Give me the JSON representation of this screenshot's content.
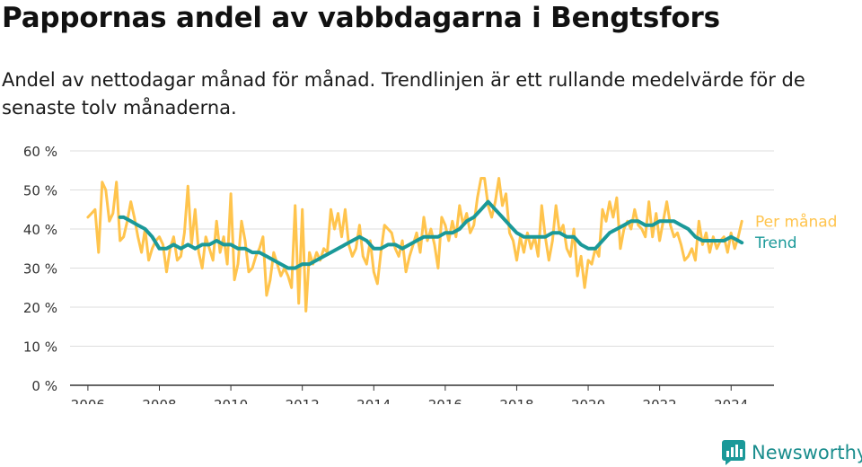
{
  "title": "Pappornas andel av vabbdagarna i Bengtsfors",
  "subtitle": "Andel av nettodagar månad för månad. Trendlinjen är ett rullande medelvärde för de senaste tolv månaderna.",
  "brand": {
    "name": "Newsworthy",
    "icon": "newsworthy-logo-icon",
    "color": "#1a9999"
  },
  "chart_data": {
    "type": "line",
    "title": "",
    "xlabel": "",
    "ylabel": "",
    "grid": true,
    "legend": "line-end labels",
    "xlim": [
      2005.5,
      2025.2
    ],
    "ylim": [
      0,
      60
    ],
    "x_ticks": [
      2006,
      2008,
      2010,
      2012,
      2014,
      2016,
      2018,
      2020,
      2022,
      2024
    ],
    "x_tick_labels": [
      "2006",
      "2008",
      "2010",
      "2012",
      "2014",
      "2016",
      "2018",
      "2020",
      "2022",
      "2024"
    ],
    "y_ticks": [
      0,
      10,
      20,
      30,
      40,
      50,
      60
    ],
    "y_tick_labels": [
      "0 %",
      "10 %",
      "20 %",
      "30 %",
      "40 %",
      "50 %",
      "60 %"
    ],
    "series": [
      {
        "name": "Per månad",
        "color": "#ffc44d",
        "points": [
          [
            2006.0,
            43
          ],
          [
            2006.1,
            44
          ],
          [
            2006.2,
            45
          ],
          [
            2006.3,
            34
          ],
          [
            2006.4,
            52
          ],
          [
            2006.5,
            50
          ],
          [
            2006.6,
            42
          ],
          [
            2006.7,
            44
          ],
          [
            2006.8,
            52
          ],
          [
            2006.9,
            37
          ],
          [
            2007.0,
            38
          ],
          [
            2007.1,
            42
          ],
          [
            2007.2,
            47
          ],
          [
            2007.3,
            43
          ],
          [
            2007.4,
            38
          ],
          [
            2007.5,
            34
          ],
          [
            2007.6,
            40
          ],
          [
            2007.7,
            32
          ],
          [
            2007.8,
            35
          ],
          [
            2007.9,
            37
          ],
          [
            2008.0,
            38
          ],
          [
            2008.1,
            36
          ],
          [
            2008.2,
            29
          ],
          [
            2008.3,
            35
          ],
          [
            2008.4,
            38
          ],
          [
            2008.5,
            32
          ],
          [
            2008.6,
            33
          ],
          [
            2008.7,
            39
          ],
          [
            2008.8,
            51
          ],
          [
            2008.9,
            36
          ],
          [
            2009.0,
            45
          ],
          [
            2009.1,
            34
          ],
          [
            2009.2,
            30
          ],
          [
            2009.3,
            38
          ],
          [
            2009.4,
            35
          ],
          [
            2009.5,
            32
          ],
          [
            2009.6,
            42
          ],
          [
            2009.7,
            34
          ],
          [
            2009.8,
            38
          ],
          [
            2009.9,
            31
          ],
          [
            2010.0,
            49
          ],
          [
            2010.1,
            27
          ],
          [
            2010.2,
            31
          ],
          [
            2010.3,
            42
          ],
          [
            2010.4,
            37
          ],
          [
            2010.5,
            29
          ],
          [
            2010.6,
            30
          ],
          [
            2010.7,
            33
          ],
          [
            2010.8,
            35
          ],
          [
            2010.9,
            38
          ],
          [
            2011.0,
            23
          ],
          [
            2011.1,
            27
          ],
          [
            2011.2,
            34
          ],
          [
            2011.3,
            31
          ],
          [
            2011.4,
            28
          ],
          [
            2011.5,
            30
          ],
          [
            2011.6,
            28
          ],
          [
            2011.7,
            25
          ],
          [
            2011.8,
            46
          ],
          [
            2011.9,
            21
          ],
          [
            2012.0,
            45
          ],
          [
            2012.1,
            19
          ],
          [
            2012.2,
            34
          ],
          [
            2012.3,
            31
          ],
          [
            2012.4,
            34
          ],
          [
            2012.5,
            32
          ],
          [
            2012.6,
            35
          ],
          [
            2012.7,
            34
          ],
          [
            2012.8,
            45
          ],
          [
            2012.9,
            40
          ],
          [
            2013.0,
            44
          ],
          [
            2013.1,
            38
          ],
          [
            2013.2,
            45
          ],
          [
            2013.3,
            36
          ],
          [
            2013.4,
            33
          ],
          [
            2013.5,
            35
          ],
          [
            2013.6,
            41
          ],
          [
            2013.7,
            33
          ],
          [
            2013.8,
            31
          ],
          [
            2013.9,
            37
          ],
          [
            2014.0,
            29
          ],
          [
            2014.1,
            26
          ],
          [
            2014.2,
            34
          ],
          [
            2014.3,
            41
          ],
          [
            2014.4,
            40
          ],
          [
            2014.5,
            39
          ],
          [
            2014.6,
            35
          ],
          [
            2014.7,
            33
          ],
          [
            2014.8,
            37
          ],
          [
            2014.9,
            29
          ],
          [
            2015.0,
            33
          ],
          [
            2015.1,
            36
          ],
          [
            2015.2,
            39
          ],
          [
            2015.3,
            34
          ],
          [
            2015.4,
            43
          ],
          [
            2015.5,
            37
          ],
          [
            2015.6,
            40
          ],
          [
            2015.7,
            36
          ],
          [
            2015.8,
            30
          ],
          [
            2015.9,
            43
          ],
          [
            2016.0,
            41
          ],
          [
            2016.1,
            37
          ],
          [
            2016.2,
            42
          ],
          [
            2016.3,
            38
          ],
          [
            2016.4,
            46
          ],
          [
            2016.5,
            41
          ],
          [
            2016.6,
            44
          ],
          [
            2016.7,
            39
          ],
          [
            2016.8,
            41
          ],
          [
            2016.9,
            48
          ],
          [
            2017.0,
            53
          ],
          [
            2017.1,
            53
          ],
          [
            2017.2,
            46
          ],
          [
            2017.3,
            43
          ],
          [
            2017.4,
            47
          ],
          [
            2017.5,
            53
          ],
          [
            2017.6,
            46
          ],
          [
            2017.7,
            49
          ],
          [
            2017.8,
            39
          ],
          [
            2017.9,
            37
          ],
          [
            2018.0,
            32
          ],
          [
            2018.1,
            38
          ],
          [
            2018.2,
            34
          ],
          [
            2018.3,
            39
          ],
          [
            2018.4,
            35
          ],
          [
            2018.5,
            38
          ],
          [
            2018.6,
            33
          ],
          [
            2018.7,
            46
          ],
          [
            2018.8,
            38
          ],
          [
            2018.9,
            32
          ],
          [
            2019.0,
            37
          ],
          [
            2019.1,
            46
          ],
          [
            2019.2,
            39
          ],
          [
            2019.3,
            41
          ],
          [
            2019.4,
            35
          ],
          [
            2019.5,
            33
          ],
          [
            2019.6,
            40
          ],
          [
            2019.7,
            28
          ],
          [
            2019.8,
            33
          ],
          [
            2019.9,
            25
          ],
          [
            2020.0,
            32
          ],
          [
            2020.1,
            31
          ],
          [
            2020.2,
            35
          ],
          [
            2020.3,
            33
          ],
          [
            2020.4,
            45
          ],
          [
            2020.5,
            42
          ],
          [
            2020.6,
            47
          ],
          [
            2020.7,
            43
          ],
          [
            2020.8,
            48
          ],
          [
            2020.9,
            35
          ],
          [
            2021.0,
            40
          ],
          [
            2021.1,
            42
          ],
          [
            2021.2,
            40
          ],
          [
            2021.3,
            45
          ],
          [
            2021.4,
            41
          ],
          [
            2021.5,
            40
          ],
          [
            2021.6,
            38
          ],
          [
            2021.7,
            47
          ],
          [
            2021.8,
            38
          ],
          [
            2021.9,
            44
          ],
          [
            2022.0,
            37
          ],
          [
            2022.1,
            42
          ],
          [
            2022.2,
            47
          ],
          [
            2022.3,
            41
          ],
          [
            2022.4,
            38
          ],
          [
            2022.5,
            39
          ],
          [
            2022.6,
            36
          ],
          [
            2022.7,
            32
          ],
          [
            2022.8,
            33
          ],
          [
            2022.9,
            35
          ],
          [
            2023.0,
            32
          ],
          [
            2023.1,
            42
          ],
          [
            2023.2,
            36
          ],
          [
            2023.3,
            39
          ],
          [
            2023.4,
            34
          ],
          [
            2023.5,
            38
          ],
          [
            2023.6,
            35
          ],
          [
            2023.7,
            37
          ],
          [
            2023.8,
            38
          ],
          [
            2023.9,
            34
          ],
          [
            2024.0,
            39
          ],
          [
            2024.1,
            35
          ],
          [
            2024.2,
            38
          ],
          [
            2024.3,
            42
          ]
        ]
      },
      {
        "name": "Trend",
        "color": "#1a9999",
        "points": [
          [
            2006.9,
            43
          ],
          [
            2007.0,
            43
          ],
          [
            2007.2,
            42
          ],
          [
            2007.4,
            41
          ],
          [
            2007.6,
            40
          ],
          [
            2007.8,
            38
          ],
          [
            2008.0,
            35
          ],
          [
            2008.2,
            35
          ],
          [
            2008.4,
            36
          ],
          [
            2008.6,
            35
          ],
          [
            2008.8,
            36
          ],
          [
            2009.0,
            35
          ],
          [
            2009.2,
            36
          ],
          [
            2009.4,
            36
          ],
          [
            2009.6,
            37
          ],
          [
            2009.8,
            36
          ],
          [
            2010.0,
            36
          ],
          [
            2010.2,
            35
          ],
          [
            2010.4,
            35
          ],
          [
            2010.6,
            34
          ],
          [
            2010.8,
            34
          ],
          [
            2011.0,
            33
          ],
          [
            2011.2,
            32
          ],
          [
            2011.4,
            31
          ],
          [
            2011.6,
            30
          ],
          [
            2011.8,
            30
          ],
          [
            2012.0,
            31
          ],
          [
            2012.2,
            31
          ],
          [
            2012.4,
            32
          ],
          [
            2012.6,
            33
          ],
          [
            2012.8,
            34
          ],
          [
            2013.0,
            35
          ],
          [
            2013.2,
            36
          ],
          [
            2013.4,
            37
          ],
          [
            2013.6,
            38
          ],
          [
            2013.8,
            37
          ],
          [
            2014.0,
            35
          ],
          [
            2014.2,
            35
          ],
          [
            2014.4,
            36
          ],
          [
            2014.6,
            36
          ],
          [
            2014.8,
            35
          ],
          [
            2015.0,
            36
          ],
          [
            2015.2,
            37
          ],
          [
            2015.4,
            38
          ],
          [
            2015.6,
            38
          ],
          [
            2015.8,
            38
          ],
          [
            2016.0,
            39
          ],
          [
            2016.2,
            39
          ],
          [
            2016.4,
            40
          ],
          [
            2016.6,
            42
          ],
          [
            2016.8,
            43
          ],
          [
            2017.0,
            45
          ],
          [
            2017.2,
            47
          ],
          [
            2017.4,
            45
          ],
          [
            2017.6,
            43
          ],
          [
            2017.8,
            41
          ],
          [
            2018.0,
            39
          ],
          [
            2018.2,
            38
          ],
          [
            2018.4,
            38
          ],
          [
            2018.6,
            38
          ],
          [
            2018.8,
            38
          ],
          [
            2019.0,
            39
          ],
          [
            2019.2,
            39
          ],
          [
            2019.4,
            38
          ],
          [
            2019.6,
            38
          ],
          [
            2019.8,
            36
          ],
          [
            2020.0,
            35
          ],
          [
            2020.2,
            35
          ],
          [
            2020.4,
            37
          ],
          [
            2020.6,
            39
          ],
          [
            2020.8,
            40
          ],
          [
            2021.0,
            41
          ],
          [
            2021.2,
            42
          ],
          [
            2021.4,
            42
          ],
          [
            2021.6,
            41
          ],
          [
            2021.8,
            41
          ],
          [
            2022.0,
            42
          ],
          [
            2022.2,
            42
          ],
          [
            2022.4,
            42
          ],
          [
            2022.6,
            41
          ],
          [
            2022.8,
            40
          ],
          [
            2023.0,
            38
          ],
          [
            2023.2,
            37
          ],
          [
            2023.4,
            37
          ],
          [
            2023.6,
            37
          ],
          [
            2023.8,
            37
          ],
          [
            2024.0,
            38
          ],
          [
            2024.2,
            37
          ],
          [
            2024.3,
            36.5
          ]
        ]
      }
    ]
  }
}
